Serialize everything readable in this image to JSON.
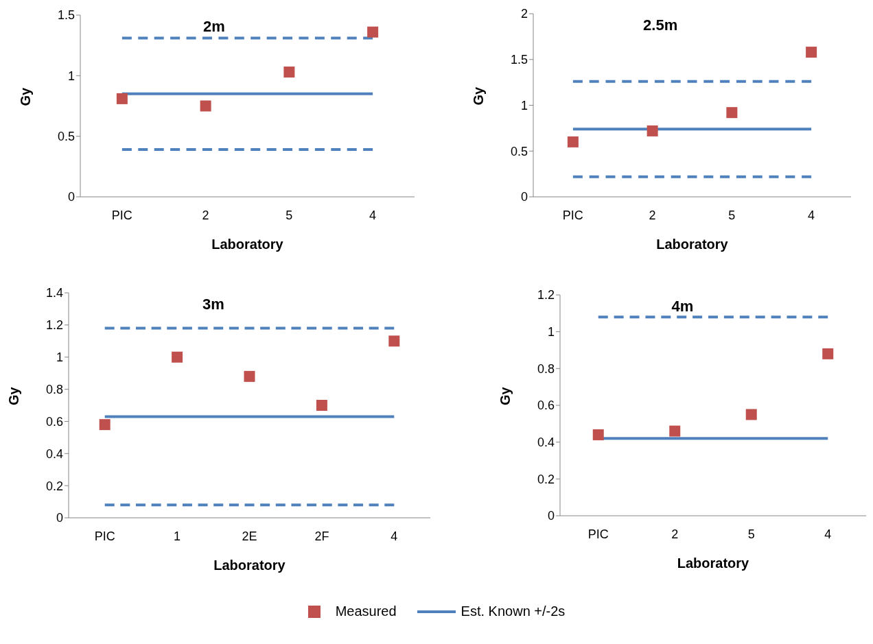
{
  "chart_data": [
    {
      "type": "scatter",
      "title": "2m",
      "xlabel": "Laboratory",
      "ylabel": "Gy",
      "categories": [
        "PIC",
        "2",
        "5",
        "4"
      ],
      "ylim": [
        0,
        1.5
      ],
      "yticks": [
        0,
        0.5,
        1,
        1.5
      ],
      "grid": false,
      "legend": false,
      "series": [
        {
          "type": "line",
          "color": "#4f81bd",
          "line_style": "solid",
          "marker": "none",
          "values": [
            0.85,
            0.85,
            0.85,
            0.85
          ]
        },
        {
          "type": "line",
          "color": "#4f81bd",
          "line_style": "dashed",
          "marker": "none",
          "values": [
            1.31,
            1.31,
            1.31,
            1.31
          ]
        },
        {
          "type": "line",
          "color": "#4f81bd",
          "line_style": "dashed",
          "marker": "none",
          "values": [
            0.39,
            0.39,
            0.39,
            0.39
          ]
        },
        {
          "type": "scatter",
          "color": "#c0504d",
          "marker": "square",
          "values": [
            0.81,
            0.75,
            1.03,
            1.36
          ]
        }
      ]
    },
    {
      "type": "scatter",
      "title": "2.5m",
      "xlabel": "Laboratory",
      "ylabel": "Gy",
      "categories": [
        "PIC",
        "2",
        "5",
        "4"
      ],
      "ylim": [
        0,
        2
      ],
      "yticks": [
        0,
        0.5,
        1,
        1.5,
        2
      ],
      "grid": false,
      "legend": false,
      "series": [
        {
          "type": "line",
          "color": "#4f81bd",
          "line_style": "solid",
          "marker": "none",
          "values": [
            0.74,
            0.74,
            0.74,
            0.74
          ]
        },
        {
          "type": "line",
          "color": "#4f81bd",
          "line_style": "dashed",
          "marker": "none",
          "values": [
            1.26,
            1.26,
            1.26,
            1.26
          ]
        },
        {
          "type": "line",
          "color": "#4f81bd",
          "line_style": "dashed",
          "marker": "none",
          "values": [
            0.22,
            0.22,
            0.22,
            0.22
          ]
        },
        {
          "type": "scatter",
          "color": "#c0504d",
          "marker": "square",
          "values": [
            0.6,
            0.72,
            0.92,
            1.58
          ]
        }
      ]
    },
    {
      "type": "scatter",
      "title": "3m",
      "xlabel": "Laboratory",
      "ylabel": "Gy",
      "categories": [
        "PIC",
        "1",
        "2E",
        "2F",
        "4"
      ],
      "ylim": [
        0,
        1.4
      ],
      "yticks": [
        0,
        0.2,
        0.4,
        0.6,
        0.8,
        1,
        1.2,
        1.4
      ],
      "grid": false,
      "legend": false,
      "series": [
        {
          "type": "line",
          "color": "#4f81bd",
          "line_style": "solid",
          "marker": "none",
          "values": [
            0.63,
            0.63,
            0.63,
            0.63,
            0.63
          ]
        },
        {
          "type": "line",
          "color": "#4f81bd",
          "line_style": "dashed",
          "marker": "none",
          "values": [
            1.18,
            1.18,
            1.18,
            1.18,
            1.18
          ]
        },
        {
          "type": "line",
          "color": "#4f81bd",
          "line_style": "dashed",
          "marker": "none",
          "values": [
            0.08,
            0.08,
            0.08,
            0.08,
            0.08
          ]
        },
        {
          "type": "scatter",
          "color": "#c0504d",
          "marker": "square",
          "values": [
            0.58,
            1.0,
            0.88,
            0.7,
            1.1
          ]
        }
      ]
    },
    {
      "type": "scatter",
      "title": "4m",
      "xlabel": "Laboratory",
      "ylabel": "Gy",
      "categories": [
        "PIC",
        "2",
        "5",
        "4"
      ],
      "ylim": [
        0,
        1.2
      ],
      "yticks": [
        0,
        0.2,
        0.4,
        0.6,
        0.8,
        1,
        1.2
      ],
      "grid": false,
      "legend": "bottom",
      "series": [
        {
          "type": "scatter",
          "name": "Measured",
          "color": "#c0504d",
          "marker": "square",
          "values": [
            0.44,
            0.46,
            0.55,
            0.88
          ]
        },
        {
          "type": "line",
          "name": "Est. Known +/-2s",
          "color": "#4f81bd",
          "line_style": "solid",
          "marker": "none",
          "values": [
            0.42,
            0.42,
            0.42,
            0.42
          ]
        },
        {
          "type": "line",
          "color": "#4f81bd",
          "line_style": "dashed",
          "marker": "none",
          "values": [
            1.08,
            1.08,
            1.08,
            1.08
          ]
        }
      ]
    }
  ]
}
